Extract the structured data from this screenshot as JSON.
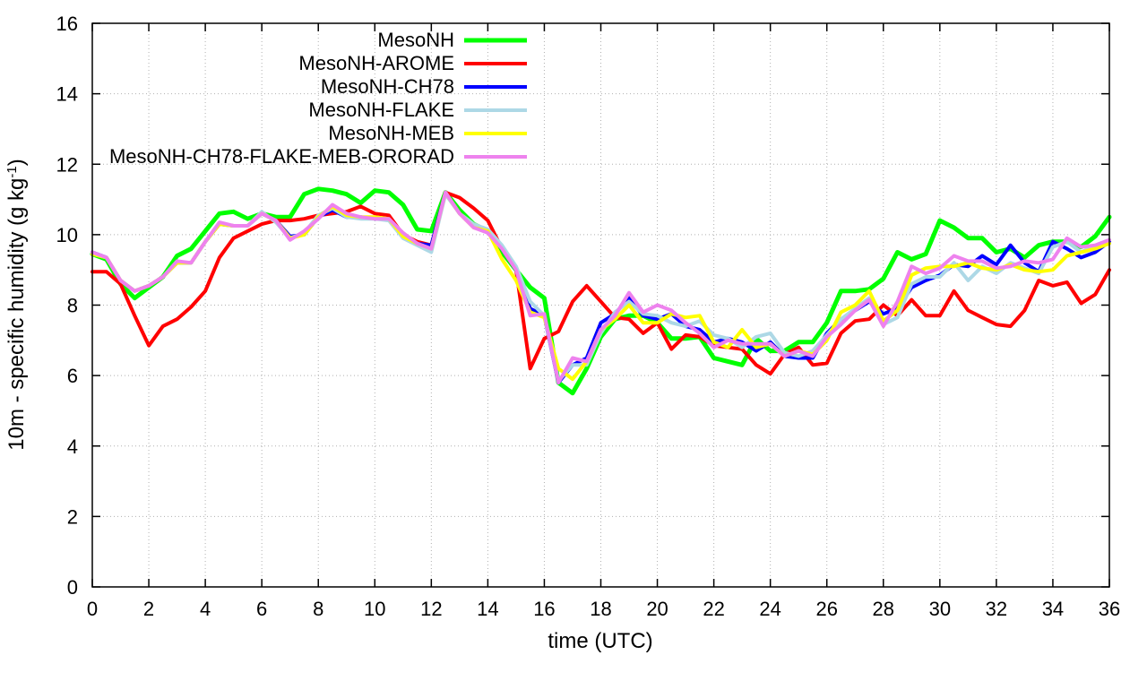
{
  "chart_data": {
    "type": "line",
    "xlabel": "time (UTC)",
    "ylabel_parts": [
      "10m - specific humidity (g kg",
      "-1",
      ")"
    ],
    "xlim": [
      0,
      36
    ],
    "ylim": [
      0,
      16
    ],
    "x_ticks": [
      0,
      2,
      4,
      6,
      8,
      10,
      12,
      14,
      16,
      18,
      20,
      22,
      24,
      26,
      28,
      30,
      32,
      34,
      36
    ],
    "y_ticks": [
      0,
      2,
      4,
      6,
      8,
      10,
      12,
      14,
      16
    ],
    "grid": true,
    "legend_position": "top-left",
    "x": [
      0,
      0.5,
      1,
      1.5,
      2,
      2.5,
      3,
      3.5,
      4,
      4.5,
      5,
      5.5,
      6,
      6.5,
      7,
      7.5,
      8,
      8.5,
      9,
      9.5,
      10,
      10.5,
      11,
      11.5,
      12,
      12.5,
      13,
      13.5,
      14,
      14.5,
      15,
      15.5,
      16,
      16.5,
      17,
      17.5,
      18,
      18.5,
      19,
      19.5,
      20,
      20.5,
      21,
      21.5,
      22,
      22.5,
      23,
      23.5,
      24,
      24.5,
      25,
      25.5,
      26,
      26.5,
      27,
      27.5,
      28,
      28.5,
      29,
      29.5,
      30,
      30.5,
      31,
      31.5,
      32,
      32.5,
      33,
      33.5,
      34,
      34.5,
      35,
      35.5,
      36
    ],
    "series": [
      {
        "name": "MesoNH",
        "color": "#00ff00",
        "width": 5,
        "values": [
          9.45,
          9.3,
          8.6,
          8.2,
          8.5,
          8.8,
          9.4,
          9.6,
          10.1,
          10.6,
          10.65,
          10.45,
          10.6,
          10.5,
          10.5,
          11.15,
          11.3,
          11.25,
          11.15,
          10.9,
          11.25,
          11.2,
          10.85,
          10.15,
          10.1,
          11.2,
          10.7,
          10.3,
          10.1,
          9.5,
          9.0,
          8.5,
          8.2,
          5.8,
          5.5,
          6.2,
          7.1,
          7.6,
          7.7,
          7.7,
          7.5,
          7.05,
          7.05,
          7.1,
          6.5,
          6.4,
          6.3,
          7.05,
          6.7,
          6.7,
          6.95,
          6.95,
          7.5,
          8.4,
          8.4,
          8.45,
          8.75,
          9.5,
          9.3,
          9.45,
          10.4,
          10.2,
          9.9,
          9.9,
          9.5,
          9.6,
          9.35,
          9.7,
          9.8,
          9.8,
          9.65,
          9.95,
          10.5
        ]
      },
      {
        "name": "MesoNH-AROME",
        "color": "#ff0000",
        "width": 4,
        "values": [
          8.95,
          8.95,
          8.6,
          7.7,
          6.85,
          7.4,
          7.6,
          7.95,
          8.4,
          9.35,
          9.9,
          10.1,
          10.3,
          10.4,
          10.4,
          10.45,
          10.55,
          10.6,
          10.65,
          10.8,
          10.6,
          10.55,
          10.0,
          9.8,
          9.7,
          11.2,
          11.05,
          10.75,
          10.4,
          9.6,
          9.0,
          6.2,
          7.05,
          7.25,
          8.1,
          8.55,
          8.1,
          7.65,
          7.6,
          7.2,
          7.5,
          6.75,
          7.15,
          7.1,
          6.85,
          6.8,
          6.75,
          6.3,
          6.05,
          6.6,
          6.8,
          6.3,
          6.35,
          7.2,
          7.55,
          7.6,
          8.0,
          7.7,
          8.15,
          7.7,
          7.7,
          8.4,
          7.85,
          7.65,
          7.45,
          7.4,
          7.85,
          8.7,
          8.55,
          8.65,
          8.05,
          8.3,
          9.0
        ]
      },
      {
        "name": "MesoNH-CH78",
        "color": "#0000ff",
        "width": 4,
        "values": [
          9.5,
          9.35,
          8.7,
          8.4,
          8.55,
          8.8,
          9.2,
          9.2,
          9.8,
          10.3,
          10.25,
          10.25,
          10.6,
          10.4,
          9.95,
          10.0,
          10.5,
          10.7,
          10.5,
          10.5,
          10.45,
          10.45,
          9.95,
          9.75,
          9.7,
          11.2,
          10.6,
          10.25,
          10.1,
          9.6,
          9.0,
          7.9,
          7.7,
          5.8,
          6.3,
          6.5,
          7.5,
          7.75,
          8.2,
          7.7,
          7.6,
          7.75,
          7.4,
          7.3,
          6.95,
          7.05,
          6.95,
          6.7,
          6.95,
          6.55,
          6.5,
          6.5,
          7.2,
          7.6,
          7.85,
          8.1,
          7.75,
          7.9,
          8.5,
          8.7,
          8.85,
          9.15,
          9.1,
          9.4,
          9.15,
          9.7,
          9.2,
          8.95,
          9.8,
          9.6,
          9.35,
          9.5,
          9.8
        ]
      },
      {
        "name": "MesoNH-FLAKE",
        "color": "#add8e6",
        "width": 4,
        "values": [
          9.45,
          9.35,
          8.7,
          8.4,
          8.55,
          8.8,
          9.2,
          9.2,
          9.8,
          10.3,
          10.25,
          10.25,
          10.65,
          10.35,
          9.9,
          10.05,
          10.55,
          10.75,
          10.5,
          10.45,
          10.45,
          10.4,
          9.9,
          9.7,
          9.5,
          11.15,
          10.6,
          10.3,
          10.15,
          9.7,
          9.1,
          8.1,
          7.7,
          5.85,
          6.3,
          6.3,
          7.2,
          7.8,
          8.1,
          7.75,
          7.7,
          7.5,
          7.4,
          7.55,
          7.15,
          7.05,
          6.8,
          7.1,
          7.2,
          6.65,
          6.55,
          6.7,
          7.15,
          7.6,
          7.9,
          8.2,
          7.45,
          7.65,
          8.6,
          8.8,
          8.8,
          9.2,
          8.7,
          9.1,
          8.9,
          9.2,
          9.05,
          8.9,
          9.65,
          9.8,
          9.5,
          9.7,
          9.85
        ]
      },
      {
        "name": "MesoNH-MEB",
        "color": "#ffff00",
        "width": 4,
        "values": [
          9.45,
          9.35,
          8.7,
          8.4,
          8.55,
          8.8,
          9.2,
          9.2,
          9.8,
          10.3,
          10.25,
          10.25,
          10.6,
          10.4,
          9.9,
          10.0,
          10.5,
          10.8,
          10.55,
          10.5,
          10.5,
          10.45,
          9.95,
          9.75,
          9.6,
          11.2,
          10.6,
          10.2,
          10.1,
          9.3,
          8.7,
          7.8,
          7.65,
          6.2,
          5.9,
          6.4,
          7.3,
          7.6,
          8.0,
          7.5,
          7.5,
          7.75,
          7.65,
          7.7,
          6.95,
          6.8,
          7.3,
          6.8,
          6.9,
          6.55,
          6.7,
          6.6,
          7.0,
          7.8,
          8.0,
          8.4,
          7.55,
          7.85,
          8.85,
          9.05,
          9.1,
          9.1,
          9.2,
          9.05,
          9.0,
          9.15,
          9.0,
          8.95,
          9.0,
          9.4,
          9.5,
          9.6,
          9.75
        ]
      },
      {
        "name": "MesoNH-CH78-FLAKE-MEB-ORORAD",
        "color": "#ee82ee",
        "width": 4,
        "values": [
          9.5,
          9.35,
          8.7,
          8.4,
          8.55,
          8.8,
          9.25,
          9.2,
          9.8,
          10.35,
          10.25,
          10.25,
          10.6,
          10.4,
          9.85,
          10.1,
          10.45,
          10.85,
          10.6,
          10.5,
          10.45,
          10.45,
          10.05,
          9.75,
          9.6,
          11.2,
          10.6,
          10.2,
          10.05,
          9.6,
          9.0,
          7.7,
          7.75,
          5.8,
          6.5,
          6.4,
          7.3,
          7.7,
          8.35,
          7.8,
          8.0,
          7.85,
          7.5,
          7.2,
          6.8,
          7.0,
          6.9,
          6.9,
          6.9,
          6.55,
          6.7,
          6.55,
          7.1,
          7.45,
          7.85,
          8.15,
          7.4,
          8.1,
          9.1,
          8.9,
          9.05,
          9.4,
          9.25,
          9.25,
          9.05,
          9.1,
          9.25,
          9.2,
          9.3,
          9.9,
          9.65,
          9.7,
          9.85
        ]
      }
    ]
  }
}
